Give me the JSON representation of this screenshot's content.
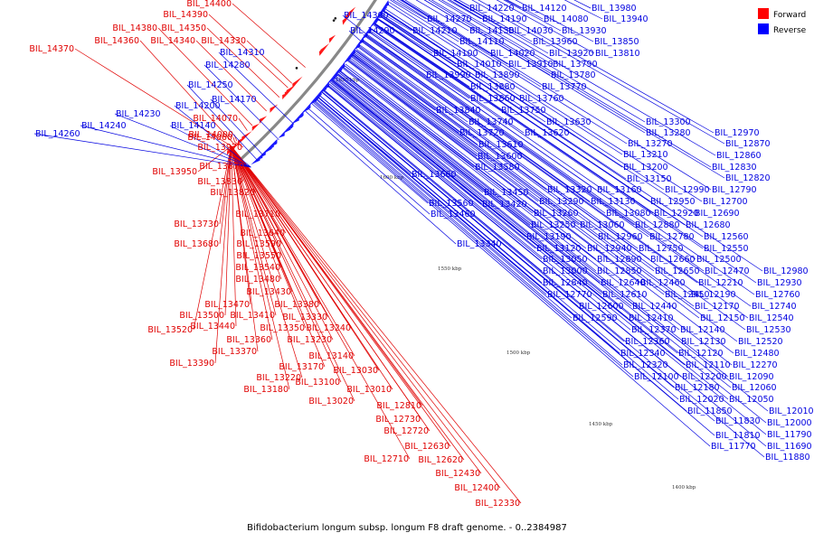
{
  "caption": "Bifidobacterium longum subsp. longum F8 draft genome. - 0..2384987",
  "legend": [
    {
      "label": "Forward",
      "color": "#ff0000"
    },
    {
      "label": "Reverse",
      "color": "#0000ff"
    }
  ],
  "colors": {
    "forward": "#e00000",
    "reverse": "#0000e0",
    "backbone": "#888888"
  },
  "ticks": [
    "1650 kbp",
    "1600 kbp",
    "1550 kbp",
    "1500 kbp",
    "1450 kbp",
    "1400 kbp"
  ],
  "forward_labels": [
    "BIL_14400",
    "BIL_14390",
    "BIL_14380",
    "BIL_14350",
    "BIL_14360",
    "BIL_14340",
    "BIL_14330",
    "BIL_14370",
    "BIL_14070",
    "BIL_14060",
    "BIL_14000",
    "BIL_13970",
    "BIL_13950",
    "BIL_13870",
    "BIL_13830",
    "BIL_13820",
    "BIL_13710",
    "BIL_13730",
    "BIL_13640",
    "BIL_13680",
    "BIL_13590",
    "BIL_13550",
    "BIL_13540",
    "BIL_13480",
    "BIL_13430",
    "BIL_13470",
    "BIL_13380",
    "BIL_13500",
    "BIL_13410",
    "BIL_13330",
    "BIL_13520",
    "BIL_13440",
    "BIL_13350",
    "BIL_13240",
    "BIL_13360",
    "BIL_13230",
    "BIL_13370",
    "BIL_13390",
    "BIL_13140",
    "BIL_13170",
    "BIL_13030",
    "BIL_13220",
    "BIL_13100",
    "BIL_13180",
    "BIL_13010",
    "BIL_13020",
    "BIL_12810",
    "BIL_12730",
    "BIL_12720",
    "BIL_12630",
    "BIL_12710",
    "BIL_12620",
    "BIL_12430",
    "BIL_12400",
    "BIL_12330"
  ],
  "reverse_labels": [
    "BIL_14300",
    "BIL_14290",
    "BIL_14310",
    "BIL_14280",
    "BIL_14250",
    "BIL_14170",
    "BIL_14200",
    "BIL_14230",
    "BIL_14140",
    "BIL_14240",
    "BIL_14260",
    "BIL_14220",
    "BIL_14120",
    "BIL_13980",
    "BIL_14270",
    "BIL_14190",
    "BIL_14080",
    "BIL_13940",
    "BIL_14210",
    "BIL_14130",
    "BIL_14030",
    "BIL_13930",
    "BIL_14110",
    "BIL_13960",
    "BIL_13850",
    "BIL_14100",
    "BIL_14020",
    "BIL_13920",
    "BIL_13810",
    "BIL_14010",
    "BIL_13910",
    "BIL_13790",
    "BIL_13990",
    "BIL_13890",
    "BIL_13780",
    "BIL_13880",
    "BIL_13770",
    "BIL_13860",
    "BIL_13760",
    "BIL_13840",
    "BIL_13750",
    "BIL_13740",
    "BIL_13630",
    "BIL_13720",
    "BIL_13620",
    "BIL_13610",
    "BIL_13600",
    "BIL_13580",
    "BIL_13660",
    "BIL_13560",
    "BIL_13450",
    "BIL_13420",
    "BIL_13460",
    "BIL_13340",
    "BIL_13300",
    "BIL_13280",
    "BIL_13270",
    "BIL_13210",
    "BIL_13200",
    "BIL_13150",
    "BIL_12970",
    "BIL_12870",
    "BIL_12860",
    "BIL_12830",
    "BIL_12820",
    "BIL_13320",
    "BIL_13160",
    "BIL_12990",
    "BIL_12790",
    "BIL_13290",
    "BIL_13130",
    "BIL_12950",
    "BIL_12700",
    "BIL_13260",
    "BIL_13080",
    "BIL_12920",
    "BIL_12690",
    "BIL_13250",
    "BIL_13060",
    "BIL_12880",
    "BIL_12680",
    "BIL_13190",
    "BIL_12960",
    "BIL_12780",
    "BIL_12560",
    "BIL_13120",
    "BIL_12940",
    "BIL_12750",
    "BIL_12550",
    "BIL_13050",
    "BIL_12890",
    "BIL_12660",
    "BIL_12500",
    "BIL_13000",
    "BIL_12850",
    "BIL_12650",
    "BIL_12470",
    "BIL_12980",
    "BIL_12840",
    "BIL_12640",
    "BIL_12460",
    "BIL_12210",
    "BIL_12930",
    "BIL_12770",
    "BIL_12610",
    "BIL_12450",
    "BIL_12190",
    "BIL_12760",
    "BIL_12600",
    "BIL_12440",
    "BIL_12170",
    "BIL_12740",
    "BIL_12590",
    "BIL_12410",
    "BIL_12150",
    "BIL_12540",
    "BIL_12370",
    "BIL_12140",
    "BIL_12530",
    "BIL_12360",
    "BIL_12130",
    "BIL_12520",
    "BIL_12340",
    "BIL_12120",
    "BIL_12480",
    "BIL_12320",
    "BIL_12110",
    "BIL_12270",
    "BIL_12100",
    "BIL_12200",
    "BIL_12090",
    "BIL_12180",
    "BIL_12060",
    "BIL_12020",
    "BIL_12050",
    "BIL_11850",
    "BIL_12010",
    "BIL_11830",
    "BIL_12000",
    "BIL_11810",
    "BIL_11790",
    "BIL_11770",
    "BIL_11690",
    "BIL_11880"
  ]
}
